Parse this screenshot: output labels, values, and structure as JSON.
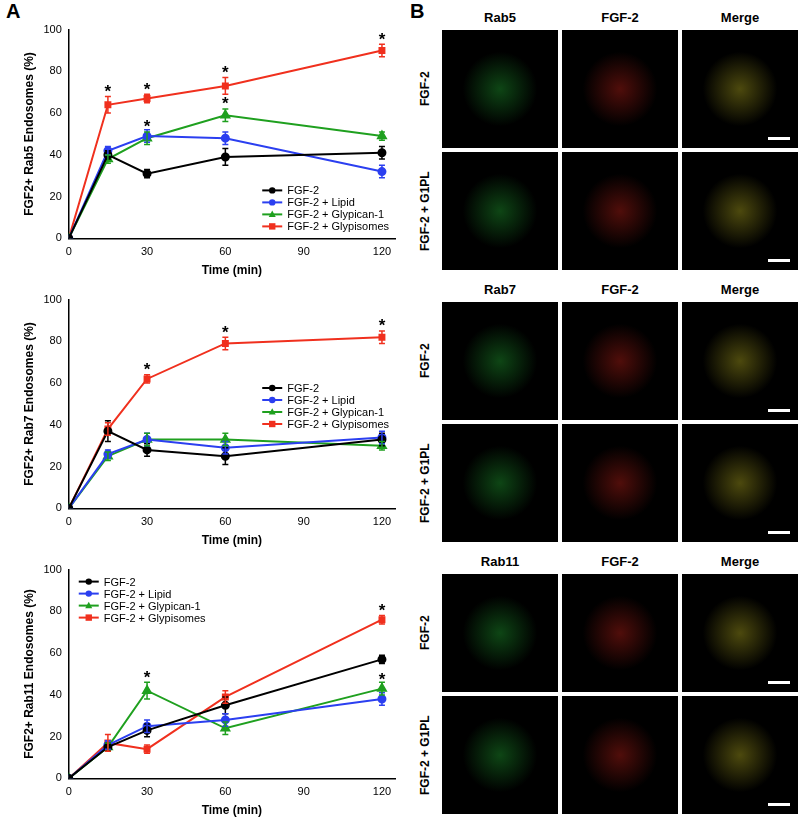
{
  "panel_labels": [
    "A",
    "B"
  ],
  "chart_data": [
    {
      "type": "line",
      "x_label": "Time (min)",
      "y_label": "FGF2+ Rab5 Endosomes (%)",
      "x": [
        0,
        15,
        30,
        60,
        120
      ],
      "xlim": [
        0,
        125
      ],
      "xticks": [
        0,
        30,
        60,
        90,
        120
      ],
      "ylim": [
        0,
        100
      ],
      "yticks": [
        0,
        20,
        40,
        60,
        80,
        100
      ],
      "grid": false,
      "legend": "lower right",
      "series": [
        {
          "name": "FGF-2",
          "color": "#000000",
          "marker": "circle",
          "values": [
            0,
            40,
            31,
            39,
            41
          ],
          "errors": [
            0,
            2,
            2,
            4,
            3
          ]
        },
        {
          "name": "FGF-2 + Lipid",
          "color": "#2b3ff0",
          "marker": "circle",
          "values": [
            0,
            42,
            49,
            48,
            32
          ],
          "errors": [
            0,
            2,
            3,
            3,
            3
          ]
        },
        {
          "name": "FGF-2 + Glypican-1",
          "color": "#1fa01f",
          "marker": "triangle",
          "values": [
            0,
            38,
            48,
            59,
            49
          ],
          "errors": [
            0,
            2,
            3,
            3,
            2
          ]
        },
        {
          "name": "FGF-2 + Glypisomes",
          "color": "#f0301e",
          "marker": "square",
          "values": [
            0,
            64,
            67,
            73,
            90
          ],
          "errors": [
            0,
            4,
            2,
            4,
            3
          ]
        }
      ],
      "annotations": [
        {
          "text": "*",
          "x": 15,
          "y": 72
        },
        {
          "text": "*",
          "x": 30,
          "y": 73
        },
        {
          "text": "*",
          "x": 60,
          "y": 81
        },
        {
          "text": "*",
          "x": 120,
          "y": 97
        },
        {
          "text": "*",
          "x": 30,
          "y": 55
        },
        {
          "text": "*",
          "x": 60,
          "y": 66
        }
      ]
    },
    {
      "type": "line",
      "x_label": "Time (min)",
      "y_label": "FGF2+ Rab7 Endosomes (%)",
      "x": [
        0,
        15,
        30,
        60,
        120
      ],
      "xlim": [
        0,
        125
      ],
      "xticks": [
        0,
        30,
        60,
        90,
        120
      ],
      "ylim": [
        0,
        100
      ],
      "yticks": [
        0,
        20,
        40,
        60,
        80,
        100
      ],
      "grid": false,
      "legend": "center right",
      "series": [
        {
          "name": "FGF-2",
          "color": "#000000",
          "marker": "circle",
          "values": [
            0,
            37,
            28,
            25,
            33
          ],
          "errors": [
            0,
            5,
            3,
            4,
            3
          ]
        },
        {
          "name": "FGF-2 + Lipid",
          "color": "#2b3ff0",
          "marker": "circle",
          "values": [
            0,
            26,
            33,
            29,
            34
          ],
          "errors": [
            0,
            2,
            3,
            3,
            3
          ]
        },
        {
          "name": "FGF-2 + Glypican-1",
          "color": "#1fa01f",
          "marker": "triangle",
          "values": [
            0,
            25,
            33,
            33,
            30
          ],
          "errors": [
            0,
            2,
            3,
            3,
            2
          ]
        },
        {
          "name": "FGF-2 + Glypisomes",
          "color": "#f0301e",
          "marker": "square",
          "values": [
            0,
            38,
            62,
            79,
            82
          ],
          "errors": [
            0,
            3,
            2,
            3,
            3
          ]
        }
      ],
      "annotations": [
        {
          "text": "*",
          "x": 30,
          "y": 68
        },
        {
          "text": "*",
          "x": 60,
          "y": 86
        },
        {
          "text": "*",
          "x": 120,
          "y": 89
        }
      ]
    },
    {
      "type": "line",
      "x_label": "Time (min)",
      "y_label": "FGF2+ Rab11 Endosomes (%)",
      "x": [
        0,
        15,
        30,
        60,
        120
      ],
      "xlim": [
        0,
        125
      ],
      "xticks": [
        0,
        30,
        60,
        90,
        120
      ],
      "ylim": [
        0,
        100
      ],
      "yticks": [
        0,
        20,
        40,
        60,
        80,
        100
      ],
      "grid": false,
      "legend": "upper left",
      "series": [
        {
          "name": "FGF-2",
          "color": "#000000",
          "marker": "circle",
          "values": [
            0,
            15,
            23,
            35,
            57
          ],
          "errors": [
            0,
            2,
            3,
            4,
            2
          ]
        },
        {
          "name": "FGF-2 + Lipid",
          "color": "#2b3ff0",
          "marker": "circle",
          "values": [
            0,
            16,
            25,
            28,
            38
          ],
          "errors": [
            0,
            2,
            3,
            3,
            3
          ]
        },
        {
          "name": "FGF-2 + Glypican-1",
          "color": "#1fa01f",
          "marker": "triangle",
          "values": [
            0,
            15,
            42,
            24,
            43
          ],
          "errors": [
            0,
            2,
            4,
            3,
            3
          ]
        },
        {
          "name": "FGF-2 + Glypisomes",
          "color": "#f0301e",
          "marker": "square",
          "values": [
            0,
            17,
            14,
            39,
            76
          ],
          "errors": [
            0,
            4,
            2,
            3,
            2
          ]
        }
      ],
      "annotations": [
        {
          "text": "*",
          "x": 30,
          "y": 50
        },
        {
          "text": "*",
          "x": 120,
          "y": 82
        },
        {
          "text": "*",
          "x": 120,
          "y": 49
        }
      ]
    }
  ],
  "image_panels": [
    {
      "columns": [
        "Rab5",
        "FGF-2",
        "Merge"
      ],
      "rows": [
        "FGF-2",
        "FGF-2 + G1PL"
      ]
    },
    {
      "columns": [
        "Rab7",
        "FGF-2",
        "Merge"
      ],
      "rows": [
        "FGF-2",
        "FGF-2 + G1PL"
      ]
    },
    {
      "columns": [
        "Rab11",
        "FGF-2",
        "Merge"
      ],
      "rows": [
        "FGF-2",
        "FGF-2 + G1PL"
      ]
    }
  ]
}
